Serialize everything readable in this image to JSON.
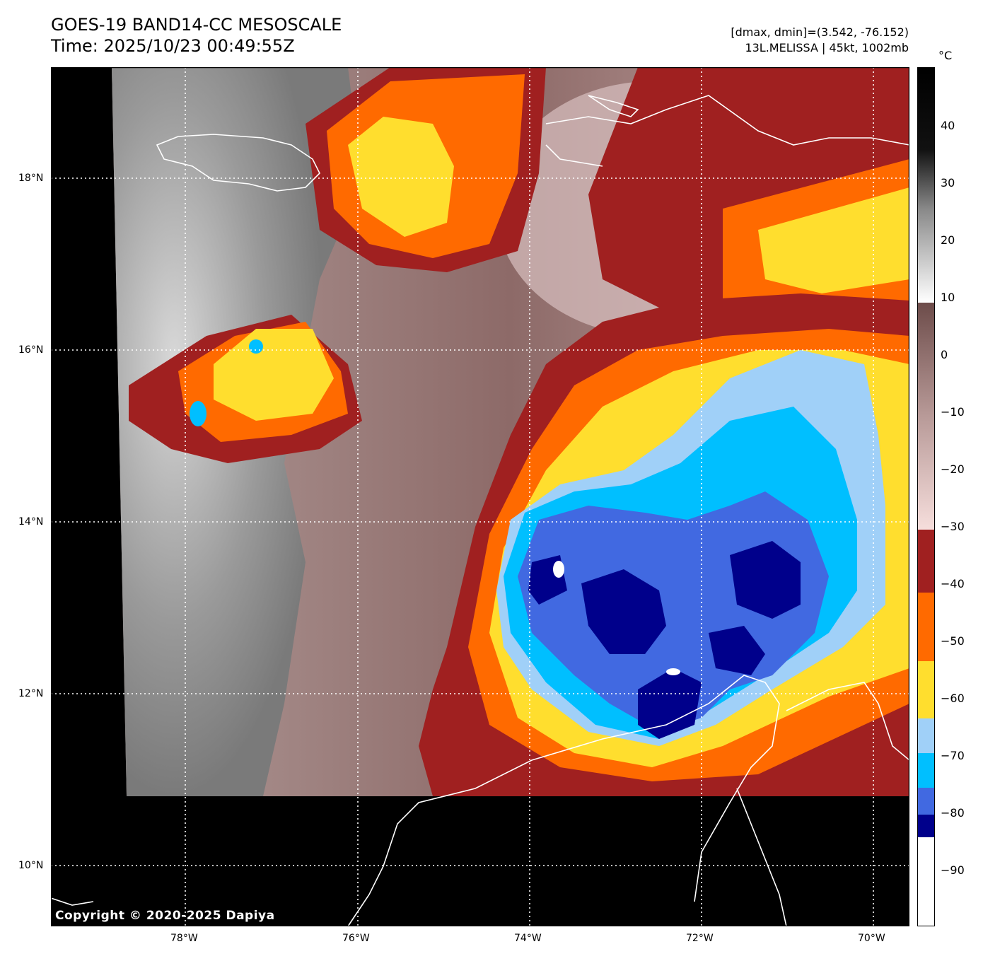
{
  "header": {
    "title_line1": "GOES-19 BAND14-CC MESOSCALE",
    "title_line2": "Time: 2025/10/23 00:49:55Z",
    "stats_line": "[dmax, dmin]=(3.542, -76.152)",
    "storm_line": "13L.MELISSA | 45kt, 1002mb"
  },
  "map": {
    "lon_range": [
      -79.5,
      -69.6
    ],
    "lat_range": [
      9.35,
      19.3
    ],
    "lon_ticks": [
      {
        "value": -78,
        "label": "78°W"
      },
      {
        "value": -76,
        "label": "76°W"
      },
      {
        "value": -74,
        "label": "74°W"
      },
      {
        "value": -72,
        "label": "72°W"
      },
      {
        "value": -70,
        "label": "70°W"
      }
    ],
    "lat_ticks": [
      {
        "value": 18,
        "label": "18°N"
      },
      {
        "value": 16,
        "label": "16°N"
      },
      {
        "value": 14,
        "label": "14°N"
      },
      {
        "value": 12,
        "label": "12°N"
      },
      {
        "value": 10,
        "label": "10°N"
      }
    ],
    "gridlines": true,
    "copyright": "Copyright © 2020-2025 Dapiya",
    "no_data_color": "#000000",
    "coastline_color": "#ffffff"
  },
  "colorbar": {
    "unit": "°C",
    "range": [
      -100,
      50
    ],
    "tick_labels": [
      {
        "value": 40,
        "label": "40"
      },
      {
        "value": 30,
        "label": "30"
      },
      {
        "value": 20,
        "label": "20"
      },
      {
        "value": 10,
        "label": "10"
      },
      {
        "value": 0,
        "label": "0"
      },
      {
        "value": -10,
        "label": "−10"
      },
      {
        "value": -20,
        "label": "−20"
      },
      {
        "value": -30,
        "label": "−30"
      },
      {
        "value": -40,
        "label": "−40"
      },
      {
        "value": -50,
        "label": "−50"
      },
      {
        "value": -60,
        "label": "−60"
      },
      {
        "value": -70,
        "label": "−70"
      },
      {
        "value": -80,
        "label": "−80"
      },
      {
        "value": -90,
        "label": "−90"
      }
    ],
    "bands": [
      {
        "from": -100,
        "to": -84,
        "color": "#ffffff"
      },
      {
        "from": -84,
        "to": -80,
        "color": "#00008b"
      },
      {
        "from": -80,
        "to": -75,
        "color": "#4169e1"
      },
      {
        "from": -75,
        "to": -70,
        "color": "#00bfff"
      },
      {
        "from": -70,
        "to": -64,
        "color": "#a0d0f8"
      },
      {
        "from": -64,
        "to": -54,
        "color": "#ffde2e"
      },
      {
        "from": -54,
        "to": -42,
        "color": "#ff6a00"
      },
      {
        "from": -42,
        "to": -31,
        "color": "#a02020"
      },
      {
        "from": -31,
        "to": 9,
        "color": "gradient-pink-brown"
      },
      {
        "from": 9,
        "to": 50,
        "color": "gradient-white-black"
      }
    ]
  }
}
